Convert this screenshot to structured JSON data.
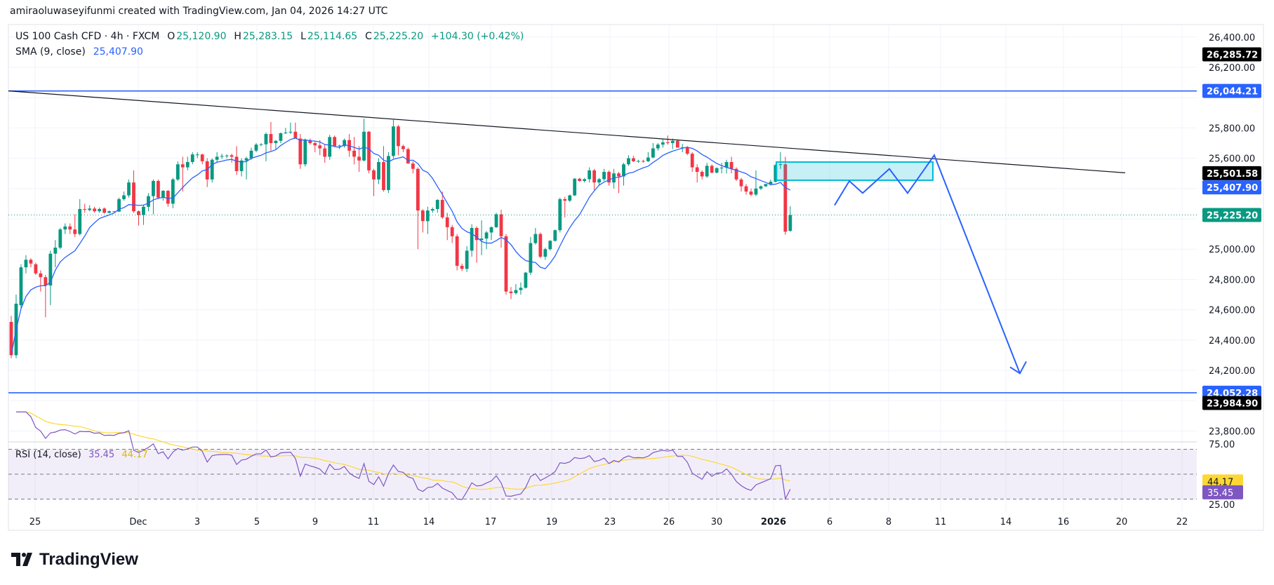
{
  "header": {
    "attribution": "amiraoluwaseyifunmi created with TradingView.com, Jan 04, 2026 14:27 UTC"
  },
  "legend": {
    "symbol": "US 100 Cash CFD · 4h · FXCM",
    "open_label": "O",
    "open": "25,120.90",
    "high_label": "H",
    "high": "25,283.15",
    "low_label": "L",
    "low": "25,114.65",
    "close_label": "C",
    "close": "25,225.20",
    "change": "+104.30 (+0.42%)",
    "sma_label": "SMA (9, close)",
    "sma_value": "25,407.90",
    "rsi_label": "RSI (14, close)",
    "rsi_value": "35.45",
    "rsi_ma_value": "44.17"
  },
  "colors": {
    "up": "#089981",
    "down": "#f23645",
    "sma": "#2962ff",
    "drawing": "#2962ff",
    "trendline": "#131722",
    "zone": "#00bcd4",
    "rsi": "#7e57c2",
    "rsi_ma": "#fdd835"
  },
  "logo": {
    "text": "TradingView"
  },
  "chart_data": {
    "type": "candlestick",
    "interval": "4h",
    "price_axis": {
      "ticks": [
        "26,400.00",
        "26,200.00",
        "25,800.00",
        "25,600.00",
        "25,000.00",
        "24,800.00",
        "24,600.00",
        "24,400.00",
        "24,200.00",
        "23,800.00"
      ],
      "tick_values": [
        26400,
        26200,
        25800,
        25600,
        25000,
        24800,
        24600,
        24400,
        24200,
        23800
      ],
      "range": [
        23760,
        26480
      ],
      "labels": [
        {
          "text": "26,285.72",
          "value": 26285.72,
          "color": "#000000"
        },
        {
          "text": "26,044.21",
          "value": 26044.21,
          "color": "#2962ff"
        },
        {
          "text": "25,501.58",
          "value": 25501.58,
          "color": "#000000"
        },
        {
          "text": "25,407.90",
          "value": 25407.9,
          "color": "#2962ff"
        },
        {
          "text": "25,225.20",
          "value": 25225.2,
          "color": "#089981"
        },
        {
          "text": "24,052.28",
          "value": 24052.28,
          "color": "#2962ff"
        },
        {
          "text": "23,984.90",
          "value": 23984.9,
          "color": "#000000"
        }
      ]
    },
    "time_axis": {
      "ticks": [
        "25",
        "Dec",
        "3",
        "5",
        "9",
        "11",
        "14",
        "17",
        "19",
        "23",
        "26",
        "30",
        "2026",
        "6",
        "8",
        "11",
        "14",
        "16",
        "20",
        "22"
      ]
    },
    "rsi_axis": {
      "ticks": [
        "75.00",
        "25.00"
      ],
      "bands": [
        70,
        50,
        30
      ],
      "labels": [
        {
          "text": "44.17",
          "value": 44.17,
          "color": "#fdd835"
        },
        {
          "text": "35.45",
          "value": 35.45,
          "color": "#7e57c2"
        }
      ]
    },
    "horizontal_levels": [
      26044.21,
      24052.28
    ],
    "trendline": {
      "from_price": 26044.21,
      "to_price": 25501.58
    },
    "zone": {
      "top": 25575,
      "bottom": 25455
    },
    "projection_prices": [
      25290,
      25450,
      25370,
      25530,
      25370,
      25620,
      24180
    ],
    "candles_ohlc": [
      [
        24520,
        24560,
        24280,
        24300
      ],
      [
        24300,
        24700,
        24280,
        24640
      ],
      [
        24630,
        24900,
        24610,
        24880
      ],
      [
        24880,
        24960,
        24840,
        24930
      ],
      [
        24930,
        24940,
        24880,
        24905
      ],
      [
        24900,
        24910,
        24830,
        24840
      ],
      [
        24840,
        24860,
        24720,
        24815
      ],
      [
        24815,
        24830,
        24550,
        24760
      ],
      [
        24760,
        24990,
        24630,
        24970
      ],
      [
        24970,
        25060,
        24880,
        25010
      ],
      [
        25010,
        25140,
        25000,
        25130
      ],
      [
        25130,
        25170,
        25100,
        25150
      ],
      [
        25150,
        25170,
        25100,
        25130
      ],
      [
        25130,
        25230,
        25080,
        25100
      ],
      [
        25100,
        25330,
        25090,
        25265
      ],
      [
        25265,
        25300,
        25240,
        25262
      ],
      [
        25258,
        25290,
        25250,
        25268
      ],
      [
        25268,
        25280,
        25240,
        25250
      ],
      [
        25250,
        25275,
        25240,
        25265
      ],
      [
        25268,
        25275,
        25235,
        25240
      ],
      [
        25240,
        25255,
        25235,
        25250
      ],
      [
        25250,
        25252,
        25245,
        25248
      ],
      [
        25248,
        25340,
        25245,
        25330
      ],
      [
        25330,
        25380,
        25320,
        25355
      ],
      [
        25355,
        25460,
        25340,
        25440
      ],
      [
        25440,
        25520,
        25240,
        25250
      ],
      [
        25250,
        25255,
        25155,
        25225
      ],
      [
        25225,
        25290,
        25160,
        25280
      ],
      [
        25280,
        25370,
        25250,
        25350
      ],
      [
        25350,
        25460,
        25230,
        25450
      ],
      [
        25450,
        25460,
        25330,
        25340
      ],
      [
        25340,
        25390,
        25320,
        25385
      ],
      [
        25385,
        25390,
        25280,
        25300
      ],
      [
        25300,
        25470,
        25270,
        25460
      ],
      [
        25460,
        25580,
        25450,
        25560
      ],
      [
        25560,
        25610,
        25380,
        25540
      ],
      [
        25540,
        25610,
        25520,
        25575
      ],
      [
        25575,
        25640,
        25560,
        25625
      ],
      [
        25620,
        25640,
        25600,
        25625
      ],
      [
        25625,
        25630,
        25560,
        25580
      ],
      [
        25580,
        25600,
        25410,
        25460
      ],
      [
        25460,
        25600,
        25440,
        25590
      ],
      [
        25590,
        25640,
        25570,
        25610
      ],
      [
        25610,
        25630,
        25595,
        25615
      ],
      [
        25615,
        25625,
        25600,
        25618
      ],
      [
        25620,
        25630,
        25570,
        25610
      ],
      [
        25610,
        25680,
        25490,
        25515
      ],
      [
        25515,
        25600,
        25480,
        25585
      ],
      [
        25585,
        25610,
        25460,
        25600
      ],
      [
        25600,
        25670,
        25590,
        25650
      ],
      [
        25650,
        25700,
        25640,
        25690
      ],
      [
        25690,
        25700,
        25680,
        25692
      ],
      [
        25692,
        25770,
        25580,
        25760
      ],
      [
        25760,
        25840,
        25650,
        25700
      ],
      [
        25700,
        25720,
        25660,
        25715
      ],
      [
        25715,
        25770,
        25700,
        25765
      ],
      [
        25765,
        25800,
        25760,
        25770
      ],
      [
        25770,
        25835,
        25760,
        25775
      ],
      [
        25775,
        25835,
        25730,
        25730
      ],
      [
        25730,
        25760,
        25530,
        25560
      ],
      [
        25560,
        25730,
        25545,
        25720
      ],
      [
        25720,
        25730,
        25690,
        25700
      ],
      [
        25700,
        25710,
        25640,
        25685
      ],
      [
        25685,
        25720,
        25620,
        25665
      ],
      [
        25665,
        25690,
        25570,
        25610
      ],
      [
        25610,
        25755,
        25590,
        25740
      ],
      [
        25740,
        25750,
        25680,
        25680
      ],
      [
        25680,
        25690,
        25660,
        25684
      ],
      [
        25680,
        25730,
        25670,
        25720
      ],
      [
        25720,
        25760,
        25610,
        25650
      ],
      [
        25650,
        25740,
        25560,
        25610
      ],
      [
        25610,
        25680,
        25510,
        25585
      ],
      [
        25585,
        25860,
        25580,
        25775
      ],
      [
        25775,
        25780,
        25500,
        25520
      ],
      [
        25520,
        25530,
        25350,
        25460
      ],
      [
        25460,
        25600,
        25430,
        25575
      ],
      [
        25575,
        25680,
        25380,
        25390
      ],
      [
        25390,
        25640,
        25370,
        25615
      ],
      [
        25615,
        25855,
        25600,
        25810
      ],
      [
        25810,
        25820,
        25620,
        25680
      ],
      [
        25680,
        25690,
        25640,
        25660
      ],
      [
        25660,
        25670,
        25565,
        25565
      ],
      [
        25565,
        25580,
        25500,
        25530
      ],
      [
        25530,
        25540,
        25000,
        25255
      ],
      [
        25255,
        25265,
        25110,
        25185
      ],
      [
        25185,
        25280,
        25100,
        25255
      ],
      [
        25255,
        25275,
        25240,
        25265
      ],
      [
        25265,
        25330,
        25240,
        25325
      ],
      [
        25325,
        25380,
        25200,
        25210
      ],
      [
        25210,
        25240,
        25060,
        25145
      ],
      [
        25145,
        25160,
        25040,
        25085
      ],
      [
        25085,
        25100,
        24860,
        24890
      ],
      [
        24890,
        24905,
        24855,
        24870
      ],
      [
        24870,
        25020,
        24850,
        24990
      ],
      [
        24990,
        25165,
        24950,
        25140
      ],
      [
        25140,
        25150,
        24910,
        25060
      ],
      [
        25060,
        25190,
        24960,
        25070
      ],
      [
        25070,
        25120,
        25000,
        25110
      ],
      [
        25110,
        25150,
        25060,
        25145
      ],
      [
        25145,
        25240,
        25140,
        25230
      ],
      [
        25230,
        25260,
        25010,
        25085
      ],
      [
        25085,
        25100,
        24700,
        24720
      ],
      [
        24720,
        24750,
        24670,
        24710
      ],
      [
        24710,
        24770,
        24700,
        24730
      ],
      [
        24730,
        24780,
        24700,
        24745
      ],
      [
        24745,
        24850,
        24740,
        24845
      ],
      [
        24845,
        25080,
        24830,
        25040
      ],
      [
        25040,
        25140,
        25030,
        25100
      ],
      [
        25100,
        25110,
        24940,
        24950
      ],
      [
        24950,
        25010,
        24930,
        25000
      ],
      [
        25000,
        25060,
        24990,
        25055
      ],
      [
        25055,
        25130,
        25050,
        25125
      ],
      [
        25125,
        25340,
        25110,
        25330
      ],
      [
        25330,
        25345,
        25210,
        25320
      ],
      [
        25320,
        25360,
        25310,
        25355
      ],
      [
        25355,
        25470,
        25350,
        25465
      ],
      [
        25465,
        25470,
        25445,
        25450
      ],
      [
        25450,
        25470,
        25440,
        25462
      ],
      [
        25462,
        25540,
        25440,
        25520
      ],
      [
        25520,
        25530,
        25390,
        25440
      ],
      [
        25440,
        25470,
        25420,
        25462
      ],
      [
        25462,
        25530,
        25450,
        25510
      ],
      [
        25510,
        25520,
        25420,
        25440
      ],
      [
        25440,
        25530,
        25400,
        25500
      ],
      [
        25500,
        25510,
        25370,
        25480
      ],
      [
        25480,
        25570,
        25420,
        25560
      ],
      [
        25560,
        25620,
        25550,
        25600
      ],
      [
        25600,
        25615,
        25575,
        25580
      ],
      [
        25580,
        25590,
        25570,
        25582
      ],
      [
        25582,
        25590,
        25570,
        25580
      ],
      [
        25580,
        25640,
        25575,
        25605
      ],
      [
        25605,
        25700,
        25600,
        25665
      ],
      [
        25665,
        25700,
        25650,
        25690
      ],
      [
        25690,
        25730,
        25670,
        25705
      ],
      [
        25705,
        25750,
        25690,
        25700
      ],
      [
        25700,
        25730,
        25660,
        25715
      ],
      [
        25715,
        25720,
        25670,
        25670
      ],
      [
        25670,
        25695,
        25640,
        25672
      ],
      [
        25672,
        25680,
        25620,
        25630
      ],
      [
        25630,
        25640,
        25510,
        25540
      ],
      [
        25540,
        25560,
        25440,
        25510
      ],
      [
        25510,
        25520,
        25460,
        25480
      ],
      [
        25480,
        25570,
        25470,
        25550
      ],
      [
        25550,
        25560,
        25500,
        25505
      ],
      [
        25505,
        25540,
        25500,
        25535
      ],
      [
        25535,
        25570,
        25500,
        25538
      ],
      [
        25538,
        25590,
        25500,
        25575
      ],
      [
        25575,
        25610,
        25500,
        25530
      ],
      [
        25530,
        25540,
        25450,
        25460
      ],
      [
        25460,
        25470,
        25380,
        25415
      ],
      [
        25415,
        25430,
        25360,
        25380
      ],
      [
        25380,
        25400,
        25350,
        25360
      ],
      [
        25360,
        25520,
        25350,
        25400
      ],
      [
        25400,
        25420,
        25390,
        25415
      ],
      [
        25415,
        25430,
        25410,
        25430
      ],
      [
        25430,
        25460,
        25420,
        25445
      ],
      [
        25445,
        25560,
        25440,
        25555
      ],
      [
        25555,
        25640,
        25530,
        25560
      ],
      [
        25560,
        25610,
        25095,
        25115
      ],
      [
        25120.9,
        25283.15,
        25114.65,
        25225.2
      ]
    ]
  }
}
